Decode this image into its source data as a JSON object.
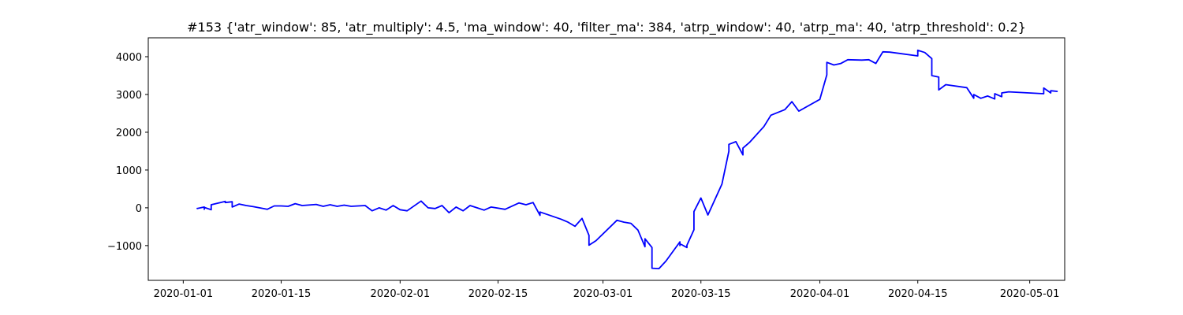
{
  "chart_data": {
    "type": "line",
    "title": "#153 {'atr_window': 85, 'atr_multiply': 4.5, 'ma_window': 40, 'filter_ma': 384, 'atrp_window': 40, 'atrp_ma': 40, 'atrp_threshold': 0.2}",
    "xlabel": "",
    "ylabel": "",
    "x_ticks": [
      "2020-01-01",
      "2020-01-15",
      "2020-02-01",
      "2020-02-15",
      "2020-03-01",
      "2020-03-15",
      "2020-04-01",
      "2020-04-15",
      "2020-05-01"
    ],
    "y_ticks": [
      "−1000",
      "0",
      "1000",
      "2000",
      "3000",
      "4000"
    ],
    "y_tick_values": [
      -1000,
      0,
      1000,
      2000,
      3000,
      4000
    ],
    "xlim": [
      "2019-12-27",
      "2020-05-06"
    ],
    "ylim": [
      -1920,
      4500
    ],
    "grid": false,
    "line_color": "#0000ff",
    "series": [
      {
        "x": [
          "2020-01-03",
          "2020-01-03",
          "2020-01-04",
          "2020-01-04",
          "2020-01-04",
          "2020-01-05",
          "2020-01-05",
          "2020-01-07",
          "2020-01-07",
          "2020-01-08",
          "2020-01-08",
          "2020-01-08",
          "2020-01-09",
          "2020-01-10",
          "2020-01-11",
          "2020-01-13",
          "2020-01-14",
          "2020-01-15",
          "2020-01-16",
          "2020-01-17",
          "2020-01-18",
          "2020-01-20",
          "2020-01-21",
          "2020-01-22",
          "2020-01-23",
          "2020-01-24",
          "2020-01-25",
          "2020-01-27",
          "2020-01-28",
          "2020-01-29",
          "2020-01-30",
          "2020-01-31",
          "2020-02-01",
          "2020-02-02",
          "2020-02-04",
          "2020-02-05",
          "2020-02-06",
          "2020-02-07",
          "2020-02-08",
          "2020-02-09",
          "2020-02-10",
          "2020-02-11",
          "2020-02-12",
          "2020-02-13",
          "2020-02-14",
          "2020-02-16",
          "2020-02-18",
          "2020-02-19",
          "2020-02-20",
          "2020-02-21",
          "2020-02-21",
          "2020-02-24",
          "2020-02-25",
          "2020-02-26",
          "2020-02-27",
          "2020-02-28",
          "2020-02-28",
          "2020-02-29",
          "2020-03-03",
          "2020-03-04",
          "2020-03-05",
          "2020-03-06",
          "2020-03-07",
          "2020-03-07",
          "2020-03-08",
          "2020-03-08",
          "2020-03-09",
          "2020-03-10",
          "2020-03-12",
          "2020-03-12",
          "2020-03-12",
          "2020-03-13",
          "2020-03-13",
          "2020-03-14",
          "2020-03-14",
          "2020-03-15",
          "2020-03-16",
          "2020-03-18",
          "2020-03-19",
          "2020-03-19",
          "2020-03-20",
          "2020-03-21",
          "2020-03-21",
          "2020-03-22",
          "2020-03-24",
          "2020-03-25",
          "2020-03-27",
          "2020-03-28",
          "2020-03-29",
          "2020-04-01",
          "2020-04-02",
          "2020-04-02",
          "2020-04-03",
          "2020-04-04",
          "2020-04-05",
          "2020-04-07",
          "2020-04-08",
          "2020-04-09",
          "2020-04-10",
          "2020-04-11",
          "2020-04-15",
          "2020-04-15",
          "2020-04-16",
          "2020-04-17",
          "2020-04-17",
          "2020-04-18",
          "2020-04-18",
          "2020-04-19",
          "2020-04-22",
          "2020-04-23",
          "2020-04-23",
          "2020-04-24",
          "2020-04-25",
          "2020-04-26",
          "2020-04-26",
          "2020-04-27",
          "2020-04-27",
          "2020-04-28",
          "2020-05-03",
          "2020-05-03",
          "2020-05-04",
          "2020-05-04",
          "2020-05-05"
        ],
        "y": [
          0,
          -20,
          20,
          -40,
          10,
          -50,
          80,
          170,
          140,
          160,
          150,
          20,
          100,
          60,
          30,
          -40,
          50,
          50,
          40,
          110,
          60,
          90,
          40,
          80,
          40,
          70,
          40,
          60,
          -80,
          0,
          -60,
          60,
          -50,
          -80,
          180,
          0,
          -20,
          60,
          -130,
          20,
          -80,
          60,
          0,
          -60,
          20,
          -40,
          130,
          80,
          140,
          -200,
          -110,
          -300,
          -380,
          -490,
          -280,
          -730,
          -990,
          -870,
          -330,
          -380,
          -410,
          -590,
          -1030,
          -820,
          -1050,
          -1600,
          -1610,
          -1410,
          -900,
          -1000,
          -950,
          -1050,
          -990,
          -580,
          -100,
          260,
          -190,
          630,
          1500,
          1680,
          1750,
          1400,
          1580,
          1740,
          2150,
          2450,
          2600,
          2810,
          2560,
          2870,
          3520,
          3850,
          3780,
          3820,
          3920,
          3910,
          3920,
          3820,
          4130,
          4120,
          4020,
          4170,
          4110,
          3950,
          3500,
          3460,
          3120,
          3260,
          3180,
          2900,
          3000,
          2900,
          2960,
          2880,
          3020,
          2940,
          3040,
          3070,
          3020,
          3170,
          3040,
          3100,
          3080
        ]
      }
    ]
  }
}
